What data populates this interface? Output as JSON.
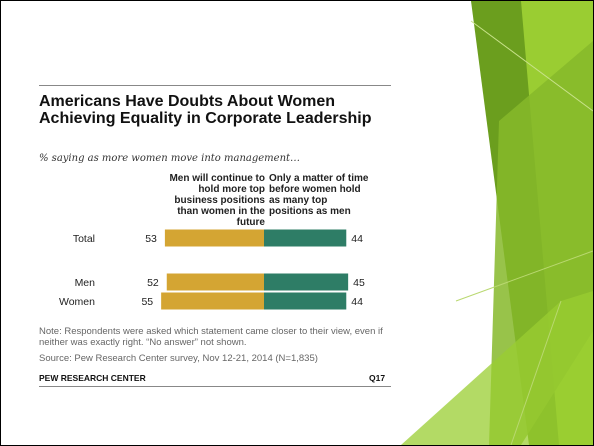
{
  "title": "Americans Have Doubts About Women Achieving Equality in Corporate Leadership",
  "subtitle": "% saying as more women move into management…",
  "note": "Note: Respondents were asked which statement came closer to their view, even if neither was exactly right. “No answer” not shown.",
  "source": "Source: Pew Research Center survey, Nov 12-21, 2014 (N=1,835)",
  "brand": "PEW RESEARCH CENTER",
  "question_ref": "Q17",
  "colors": {
    "men_continue": "#d4a533",
    "matter_of_time": "#2e7d66",
    "green_dark": "#6b9e1e",
    "green_light": "#9acd32"
  },
  "chart_data": {
    "type": "bar",
    "orientation": "horizontal",
    "stacked": "diverging",
    "categories": [
      "Total",
      "Men",
      "Women"
    ],
    "series": [
      {
        "name": "Men will continue to hold more top business positions than women in the future",
        "values": [
          53,
          52,
          55
        ]
      },
      {
        "name": "Only a matter of time before women hold as many top positions as men",
        "values": [
          44,
          45,
          44
        ]
      }
    ]
  }
}
